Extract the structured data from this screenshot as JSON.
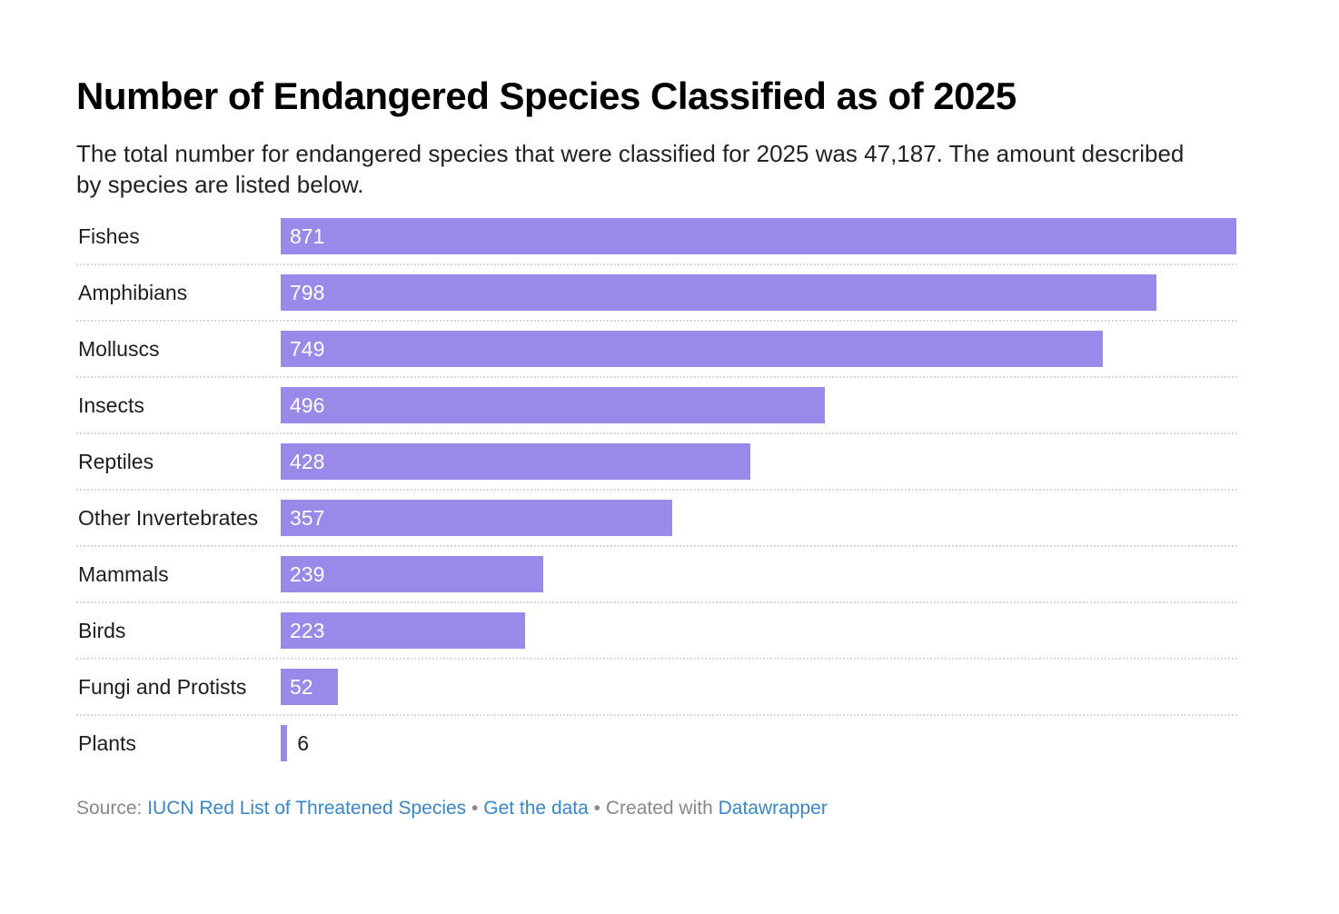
{
  "chart_data": {
    "type": "bar",
    "title": "Number of Endangered Species Classified as of 2025",
    "subtitle": "The total number for endangered species that were classified for 2025 was 47,187. The amount described by species are listed below.",
    "categories": [
      "Fishes",
      "Amphibians",
      "Molluscs",
      "Insects",
      "Reptiles",
      "Other Invertebrates",
      "Mammals",
      "Birds",
      "Fungi and Protists",
      "Plants"
    ],
    "values": [
      871,
      798,
      749,
      496,
      428,
      357,
      239,
      223,
      52,
      6
    ],
    "xlabel": "",
    "ylabel": "",
    "xlim": [
      0,
      871
    ],
    "bar_color": "#9a89e9"
  },
  "footer": {
    "source_label": "Source:",
    "source_link": "IUCN Red List of Threatened Species",
    "sep1": "•",
    "get_data": "Get the data",
    "sep2": "•",
    "created": "Created with",
    "datawrapper": "Datawrapper"
  }
}
